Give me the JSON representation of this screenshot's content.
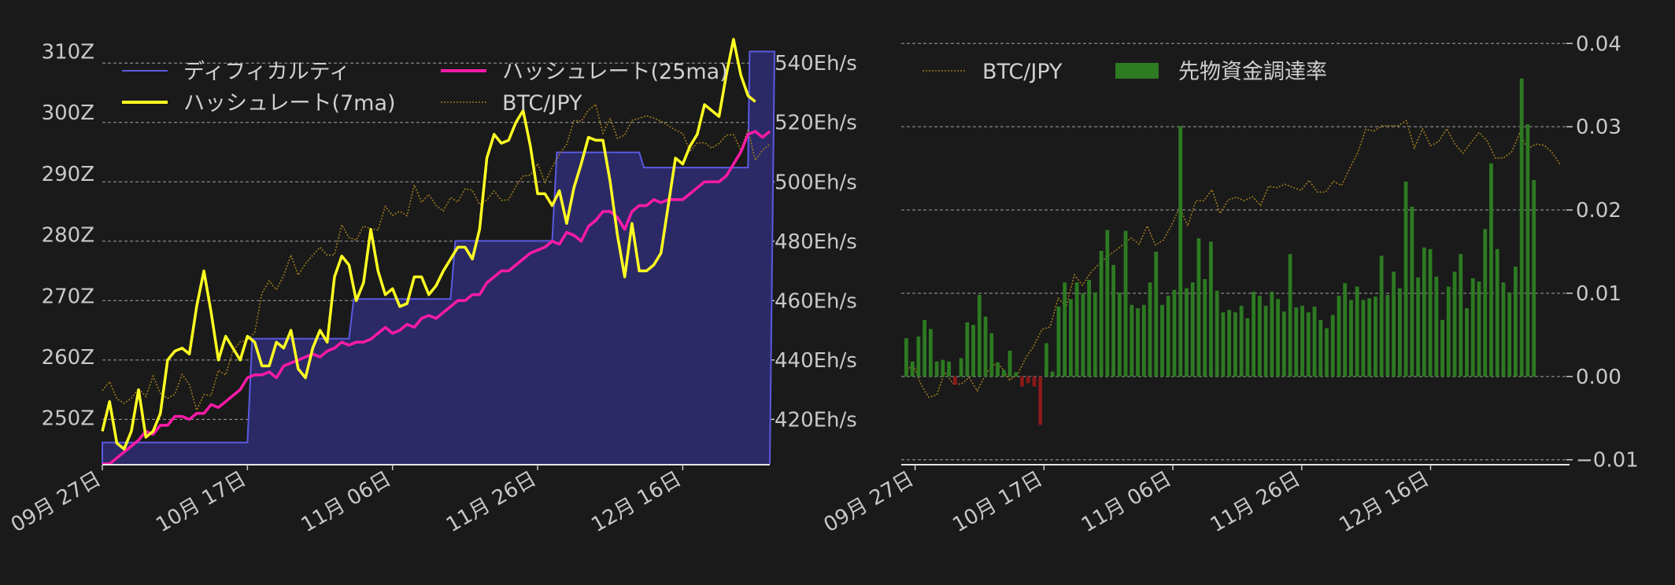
{
  "chart_data": [
    {
      "type": "line",
      "x_tick_labels": [
        "09月 27日",
        "10月 17日",
        "11月 06日",
        "11月 26日",
        "12月 16日"
      ],
      "left_axis": {
        "ylim": [
          242.5,
          312
        ],
        "ticks": [
          250,
          260,
          270,
          280,
          290,
          300,
          310
        ],
        "tick_labels": [
          "250Z",
          "260Z",
          "270Z",
          "280Z",
          "290Z",
          "300Z",
          "310Z"
        ]
      },
      "right_axis": {
        "ylim": [
          405,
          548
        ],
        "ticks": [
          420,
          440,
          460,
          480,
          500,
          520,
          540
        ],
        "tick_labels": [
          "420Eh/s",
          "440Eh/s",
          "460Eh/s",
          "480Eh/s",
          "500Eh/s",
          "520Eh/s",
          "540Eh/s"
        ]
      },
      "legend": [
        "ディフィカルティ",
        "ハッシュレート(25ma)",
        "ハッシュレート(7ma)",
        "BTC/JPY"
      ],
      "legend_placement": "top-left",
      "grid": true,
      "colors": {
        "difficulty_line": "#5a5ae0",
        "difficulty_fill": "#2c2a66",
        "hashrate_7ma": "#ffff22",
        "hashrate_25ma": "#ff1aa8",
        "btc_jpy": "#9c7a1e"
      },
      "series": [
        {
          "name": "ディフィカルティ",
          "axis": "left",
          "style": "step-area",
          "steps": [
            [
              0,
              246.0
            ],
            [
              20,
              263.0
            ],
            [
              34,
              269.5
            ],
            [
              48,
              279.0
            ],
            [
              62,
              293.5
            ],
            [
              74,
              291.0
            ],
            [
              89,
              310.0
            ],
            [
              92,
              310.0
            ]
          ]
        },
        {
          "name": "ハッシュレート(7ma)",
          "axis": "right",
          "values": [
            416,
            426,
            412,
            410,
            416,
            430,
            414,
            416,
            422,
            440,
            443,
            444,
            442,
            458,
            470,
            456,
            440,
            448,
            444,
            440,
            448,
            446,
            438,
            438,
            446,
            444,
            450,
            437,
            434,
            444,
            450,
            446,
            468,
            475,
            472,
            460,
            466,
            484,
            470,
            462,
            464,
            458,
            459,
            468,
            468,
            462,
            465,
            470,
            474,
            478,
            478,
            474,
            484,
            508,
            516,
            513,
            514,
            520,
            524,
            512,
            496,
            496,
            492,
            497,
            486,
            498,
            506,
            515,
            514,
            514,
            500,
            482,
            468,
            486,
            470,
            470,
            472,
            476,
            492,
            508,
            506,
            512,
            516,
            526,
            524,
            522,
            536,
            548,
            536,
            529,
            527
          ]
        },
        {
          "name": "ハッシュレート(25ma)",
          "axis": "right",
          "values": [
            405,
            405,
            407,
            409,
            411,
            413,
            416,
            415,
            418,
            418,
            421,
            421,
            420,
            422,
            422,
            425,
            424,
            426,
            428,
            430,
            434,
            435,
            435,
            436,
            434,
            438,
            439,
            440,
            441,
            442,
            441,
            443,
            444,
            446,
            445,
            446,
            446,
            447,
            449,
            451,
            449,
            450,
            452,
            451,
            454,
            455,
            454,
            456,
            458,
            460,
            460,
            462,
            462,
            466,
            468,
            470,
            470,
            472,
            474,
            476,
            477,
            478,
            480,
            479,
            483,
            482,
            480,
            485,
            487,
            490,
            490,
            488,
            484,
            490,
            492,
            492,
            494,
            493,
            494,
            494,
            494,
            496,
            498,
            500,
            500,
            500,
            502,
            506,
            510,
            516,
            517,
            515,
            517
          ]
        }
      ]
    },
    {
      "type": "bar",
      "x_tick_labels": [
        "09月 27日",
        "10月 17日",
        "11月 06日",
        "11月 26日",
        "12月 16日"
      ],
      "right_axis": {
        "ylim": [
          -0.0105,
          0.0405
        ],
        "ticks": [
          -0.01,
          0.0,
          0.01,
          0.02,
          0.03,
          0.04
        ],
        "tick_labels": [
          "−0.01",
          "0.00",
          "0.01",
          "0.02",
          "0.03",
          "0.04"
        ]
      },
      "legend": [
        "BTC/JPY",
        "先物資金調達率"
      ],
      "legend_placement": "top-left",
      "grid": true,
      "colors": {
        "positive_bar": "#2d7a22",
        "negative_bar": "#8b1a1a",
        "btc_jpy": "#9c7a1e"
      },
      "series": [
        {
          "name": "先物資金調達率",
          "values": [
            0.0046,
            0.0018,
            0.0048,
            0.0068,
            0.0057,
            0.0018,
            0.002,
            0.0018,
            -0.001,
            0.0022,
            0.0065,
            0.0062,
            0.0098,
            0.0072,
            0.0052,
            0.0017,
            0.0008,
            0.0031,
            0.0005,
            -0.0012,
            -0.0008,
            -0.0012,
            -0.0058,
            0.004,
            0.0006,
            0.0084,
            0.0113,
            0.0093,
            0.0113,
            0.01,
            0.0116,
            0.0101,
            0.0151,
            0.0176,
            0.0134,
            0.0101,
            0.0175,
            0.0086,
            0.0082,
            0.0086,
            0.0113,
            0.015,
            0.0086,
            0.0097,
            0.0104,
            0.0301,
            0.0106,
            0.0113,
            0.0166,
            0.0117,
            0.0162,
            0.0103,
            0.0077,
            0.008,
            0.0077,
            0.0085,
            0.007,
            0.0102,
            0.0097,
            0.0085,
            0.0102,
            0.0093,
            0.0078,
            0.0147,
            0.0083,
            0.0085,
            0.0077,
            0.0084,
            0.0068,
            0.0058,
            0.0074,
            0.0097,
            0.0112,
            0.0092,
            0.0108,
            0.0092,
            0.0094,
            0.0096,
            0.0145,
            0.0098,
            0.0126,
            0.0106,
            0.0234,
            0.0204,
            0.0119,
            0.0155,
            0.0153,
            0.012,
            0.0068,
            0.0108,
            0.0126,
            0.0147,
            0.0082,
            0.0118,
            0.0114,
            0.0177,
            0.0256,
            0.0153,
            0.0113,
            0.0101,
            0.0132,
            0.0358,
            0.0303,
            0.0236
          ]
        }
      ]
    }
  ]
}
